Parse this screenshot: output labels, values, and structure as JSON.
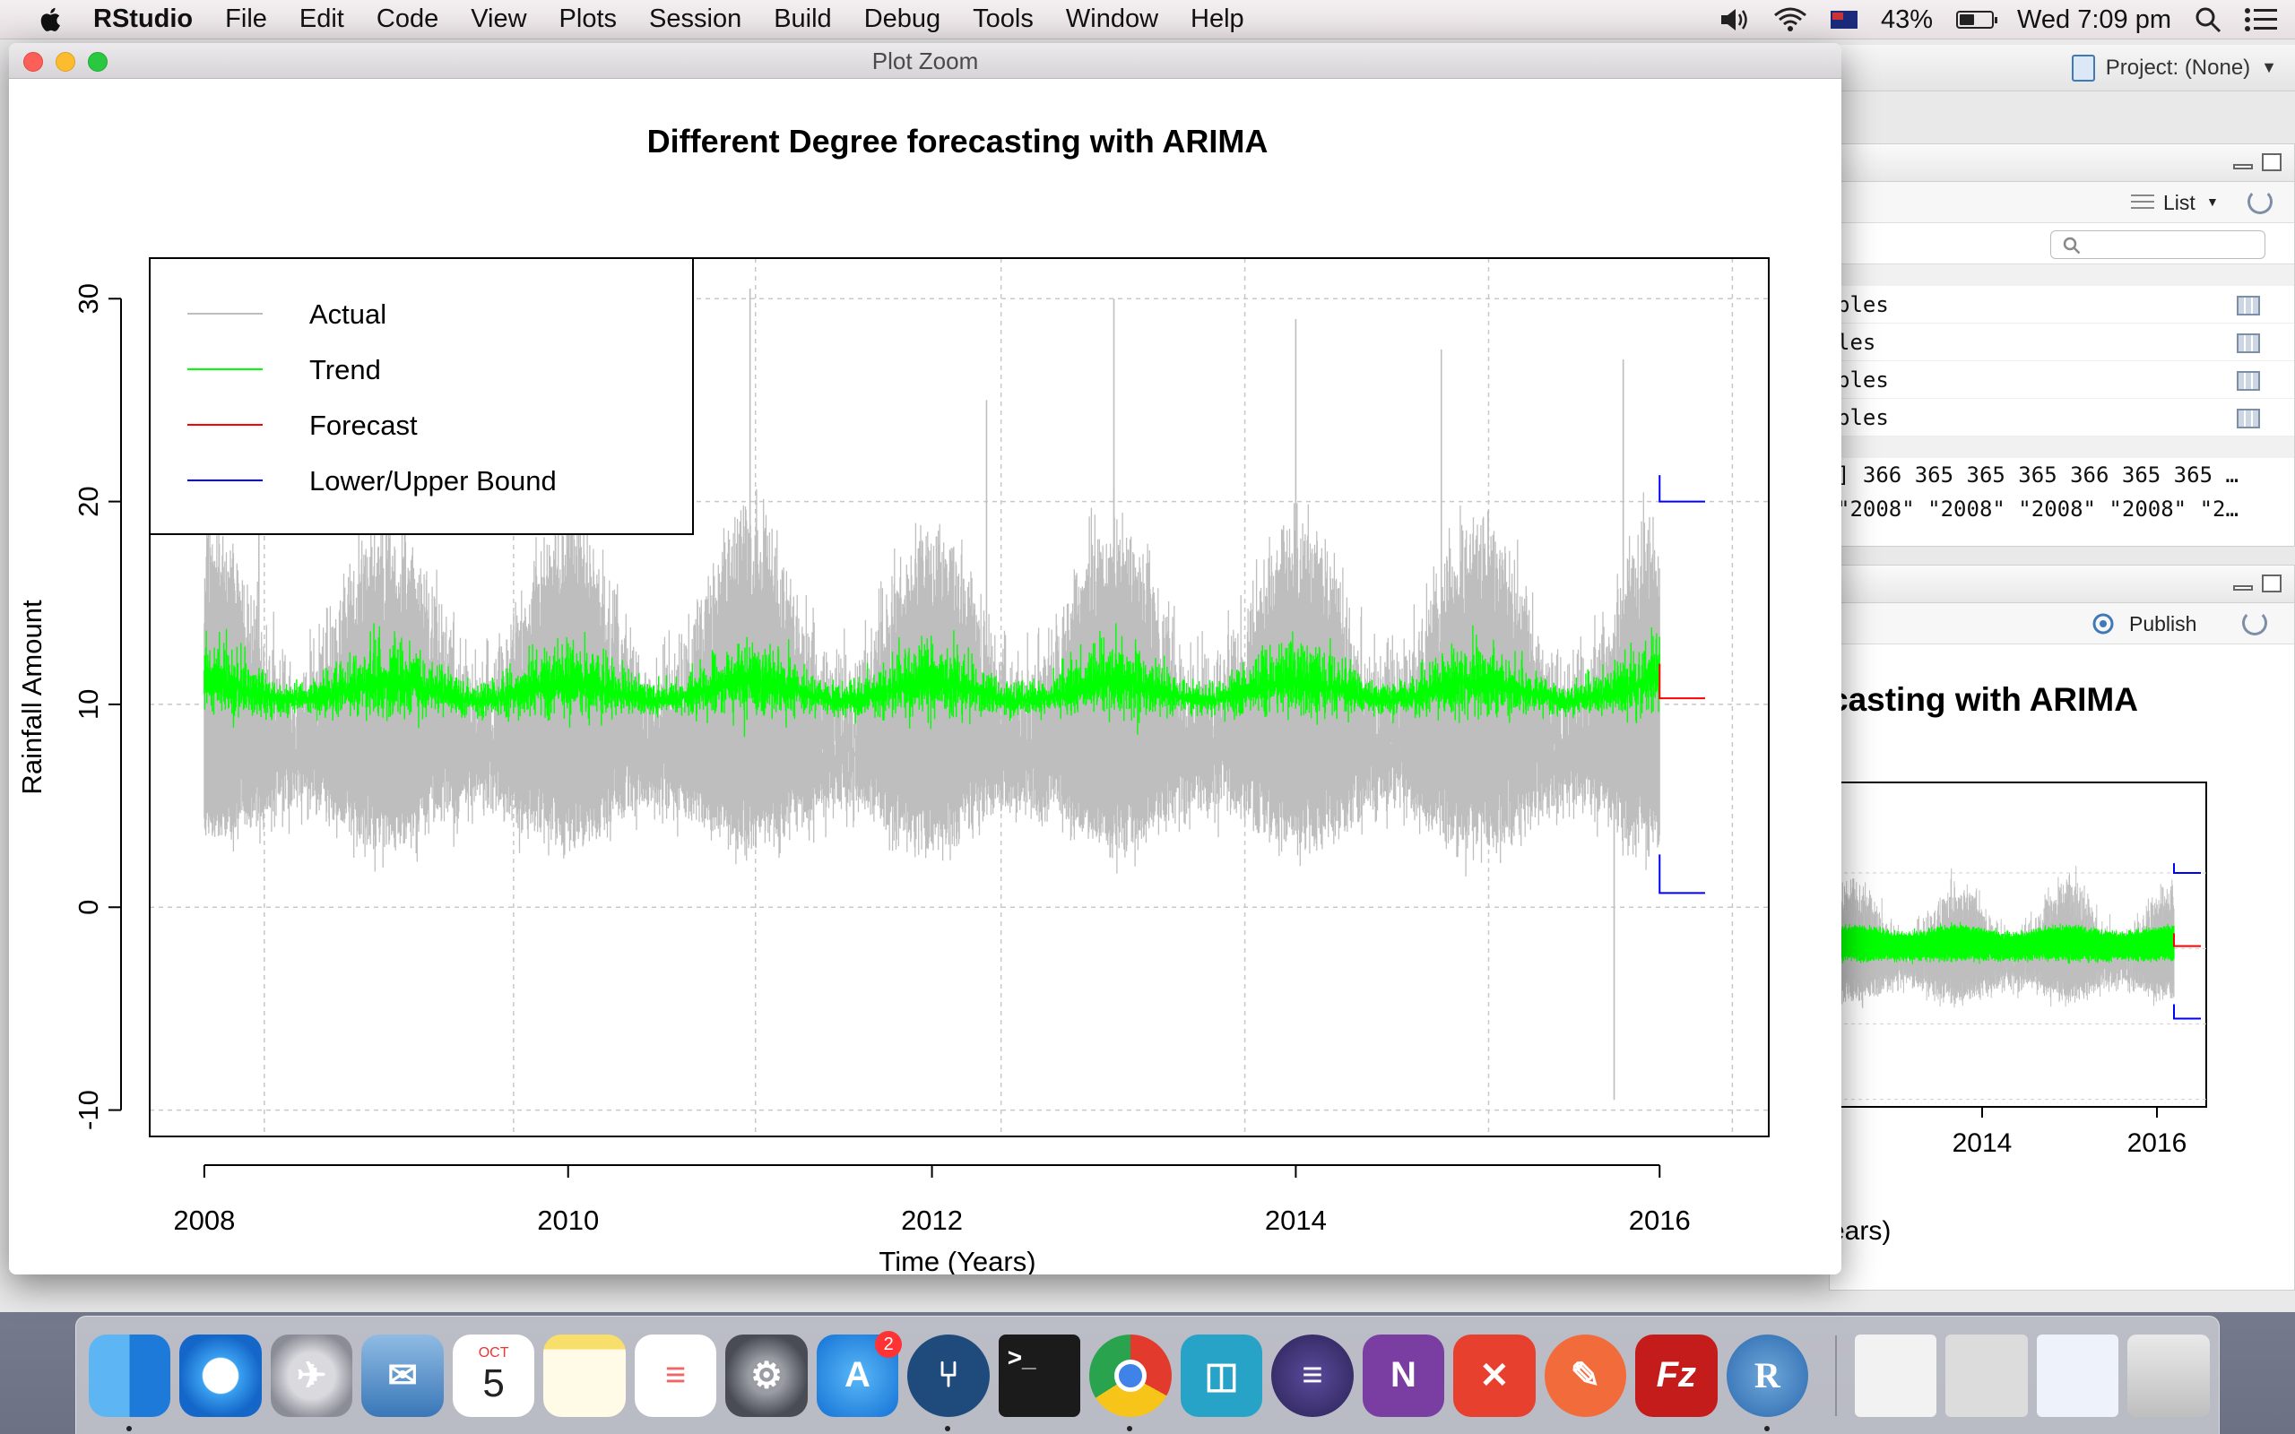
{
  "menubar": {
    "items": [
      "RStudio",
      "File",
      "Edit",
      "Code",
      "View",
      "Plots",
      "Session",
      "Build",
      "Debug",
      "Tools",
      "Window",
      "Help"
    ],
    "battery_pct": "43%",
    "battery_level": 0.43,
    "clock": "Wed 7:09 pm"
  },
  "rstudio": {
    "project_label": "Project: (None)",
    "env_pane": {
      "view_mode": "List",
      "rows": [
        "ples",
        "les",
        "ples",
        "ples"
      ],
      "vec_row_1": "] 366 365 365 365 366 365 365 …",
      "vec_row_2": "\"2008\" \"2008\" \"2008\" \"2008\" \"2…"
    },
    "plots_pane": {
      "publish_label": "Publish",
      "partial_title": "casting with ARIMA",
      "partial_xlabel": "ears)",
      "x_ticks": [
        "2014",
        "2016"
      ]
    }
  },
  "window": {
    "title": "Plot Zoom"
  },
  "chart_data": {
    "type": "line",
    "title": "Different Degree forecasting with ARIMA",
    "xlabel": "Time (Years)",
    "ylabel": "Rainfall Amount",
    "xlim": [
      2007.7,
      2016.6
    ],
    "ylim": [
      -11.3,
      32
    ],
    "x_ticks": [
      2008,
      2010,
      2012,
      2014,
      2016
    ],
    "y_ticks": [
      -10,
      0,
      10,
      20,
      30
    ],
    "grid": true,
    "legend_position": "top-left",
    "legend": [
      {
        "label": "Actual",
        "color": "#bebebe"
      },
      {
        "label": "Trend",
        "color": "#00ff00"
      },
      {
        "label": "Forecast",
        "color": "#ff0000"
      },
      {
        "label": "Lower/Upper Bound",
        "color": "#0000ff"
      }
    ],
    "series": [
      {
        "name": "Actual",
        "x_range": [
          2008,
          2016
        ],
        "typical_min": 2,
        "typical_max": 20,
        "peaks": [
          [
            2008.3,
            20
          ],
          [
            2009.0,
            24
          ],
          [
            2010.0,
            21
          ],
          [
            2011.0,
            30.5
          ],
          [
            2012.3,
            25
          ],
          [
            2013.0,
            30
          ],
          [
            2014.0,
            29
          ],
          [
            2014.8,
            27.5
          ],
          [
            2015.8,
            27
          ],
          [
            2015.75,
            -9.5
          ]
        ]
      },
      {
        "name": "Trend",
        "x_range": [
          2008,
          2016
        ],
        "mean": 10.2,
        "range": [
          7.5,
          14
        ]
      },
      {
        "name": "Forecast",
        "x": [
          2016.0,
          2016.25
        ],
        "y": [
          10.3,
          10.3
        ],
        "start_spike": 12
      },
      {
        "name": "Upper Bound",
        "x": [
          2016.0,
          2016.25
        ],
        "y": [
          20.0,
          20.0
        ],
        "start_spike": 21.3
      },
      {
        "name": "Lower Bound",
        "x": [
          2016.0,
          2016.25
        ],
        "y": [
          0.7,
          0.7
        ],
        "start_spike": 2.6
      }
    ]
  },
  "dock": {
    "apps": [
      "Finder",
      "Safari",
      "Launchpad",
      "Mail",
      "Calendar",
      "Notes",
      "Reminders",
      "System Preferences",
      "App Store",
      "SourceTree",
      "Terminal",
      "Chrome",
      "Tower",
      "Eclipse",
      "OneNote",
      "XMind",
      "Postman",
      "FileZilla",
      "RStudio"
    ],
    "calendar_month": "OCT",
    "calendar_day": "5",
    "appstore_badge": "2"
  }
}
